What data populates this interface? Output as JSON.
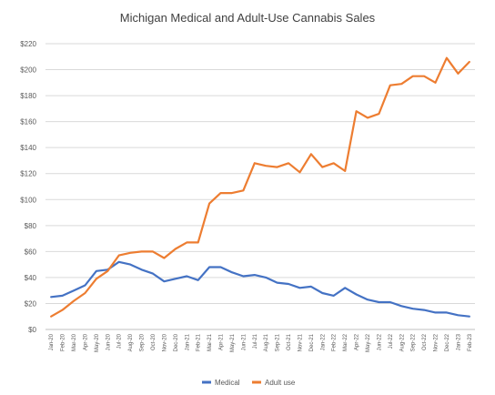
{
  "chart_data": {
    "type": "line",
    "title": "Michigan Medical and Adult-Use Cannabis Sales",
    "xlabel": "",
    "ylabel": "",
    "ylim": [
      0,
      220
    ],
    "ytick_step": 20,
    "ytick_prefix": "$",
    "grid": true,
    "legend_position": "bottom",
    "categories": [
      "Jan-20",
      "Feb-20",
      "Mar-20",
      "Apr-20",
      "May-20",
      "Jun-20",
      "Jul-20",
      "Aug-20",
      "Sep-20",
      "Oct-20",
      "Nov-20",
      "Dec-20",
      "Jan-21",
      "Feb-21",
      "Mar-21",
      "Apr-21",
      "May-21",
      "Jun-21",
      "Jul-21",
      "Aug-21",
      "Sep-21",
      "Oct-21",
      "Nov-21",
      "Dec-21",
      "Jan-22",
      "Feb-22",
      "Mar-22",
      "Apr-22",
      "May-22",
      "Jun-22",
      "Jul-22",
      "Aug-22",
      "Sep-22",
      "Oct-22",
      "Nov-22",
      "Dec-22",
      "Jan-23",
      "Feb-23"
    ],
    "series": [
      {
        "name": "Medical",
        "color": "#4472c4",
        "values": [
          25,
          26,
          30,
          34,
          45,
          46,
          52,
          50,
          46,
          43,
          37,
          39,
          41,
          38,
          48,
          48,
          44,
          41,
          42,
          40,
          36,
          35,
          32,
          33,
          28,
          26,
          32,
          27,
          23,
          21,
          21,
          18,
          16,
          15,
          13,
          13,
          11,
          10
        ]
      },
      {
        "name": "Adult use",
        "color": "#ed7d31",
        "values": [
          10,
          15,
          22,
          28,
          39,
          45,
          57,
          59,
          60,
          60,
          55,
          62,
          67,
          67,
          97,
          105,
          105,
          107,
          128,
          126,
          125,
          128,
          121,
          135,
          125,
          128,
          122,
          168,
          163,
          166,
          188,
          189,
          195,
          195,
          190,
          209,
          197,
          206
        ]
      }
    ]
  }
}
